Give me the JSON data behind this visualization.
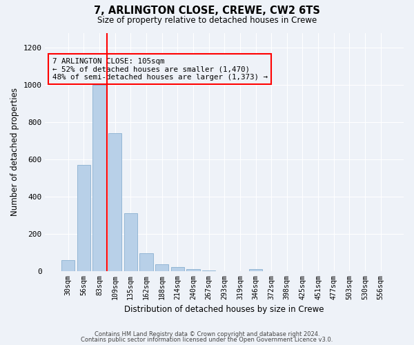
{
  "title1": "7, ARLINGTON CLOSE, CREWE, CW2 6TS",
  "title2": "Size of property relative to detached houses in Crewe",
  "xlabel": "Distribution of detached houses by size in Crewe",
  "ylabel": "Number of detached properties",
  "bar_color": "#b8d0e8",
  "bar_edge_color": "#8ab0d0",
  "categories": [
    "30sqm",
    "56sqm",
    "83sqm",
    "109sqm",
    "135sqm",
    "162sqm",
    "188sqm",
    "214sqm",
    "240sqm",
    "267sqm",
    "293sqm",
    "319sqm",
    "346sqm",
    "372sqm",
    "398sqm",
    "425sqm",
    "451sqm",
    "477sqm",
    "503sqm",
    "530sqm",
    "556sqm"
  ],
  "values": [
    60,
    570,
    1000,
    740,
    310,
    95,
    35,
    22,
    12,
    2,
    0,
    0,
    12,
    0,
    0,
    0,
    0,
    0,
    0,
    0,
    0
  ],
  "ylim": [
    0,
    1280
  ],
  "yticks": [
    0,
    200,
    400,
    600,
    800,
    1000,
    1200
  ],
  "property_line_bin": 3,
  "annotation_title": "7 ARLINGTON CLOSE: 105sqm",
  "annotation_line1": "← 52% of detached houses are smaller (1,470)",
  "annotation_line2": "48% of semi-detached houses are larger (1,373) →",
  "footer1": "Contains HM Land Registry data © Crown copyright and database right 2024.",
  "footer2": "Contains public sector information licensed under the Open Government Licence v3.0.",
  "background_color": "#eef2f8",
  "grid_color": "#ffffff"
}
